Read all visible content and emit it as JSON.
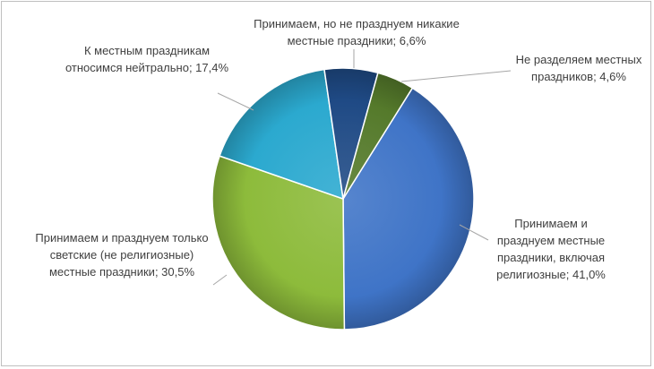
{
  "chart_data": {
    "type": "pie",
    "title": "",
    "slices": [
      {
        "value": 41.0,
        "label_lines": [
          "Принимаем и",
          "празднуем местные",
          "праздники, включая",
          "религиозные; 41,0%"
        ],
        "color": "#3f74c7"
      },
      {
        "value": 30.5,
        "label_lines": [
          "Принимаем и празднуем только",
          "светские (не религиозные)",
          "местные праздники; 30,5%"
        ],
        "color": "#8dbb3b"
      },
      {
        "value": 17.4,
        "label_lines": [
          "К местным праздникам",
          "относимся нейтрально; 17,4%"
        ],
        "color": "#2ba9cf"
      },
      {
        "value": 6.6,
        "label_lines": [
          "Принимаем, но не празднуем никакие",
          "местные праздники; 6,6%"
        ],
        "color": "#1f4a85"
      },
      {
        "value": 4.6,
        "label_lines": [
          "Не разделяем местных",
          "праздников; 4,6%"
        ],
        "color": "#557a2b"
      }
    ],
    "start_angle_deg": 32,
    "direction": "clockwise",
    "legend": "none",
    "data_labels": "outside with leader lines"
  }
}
